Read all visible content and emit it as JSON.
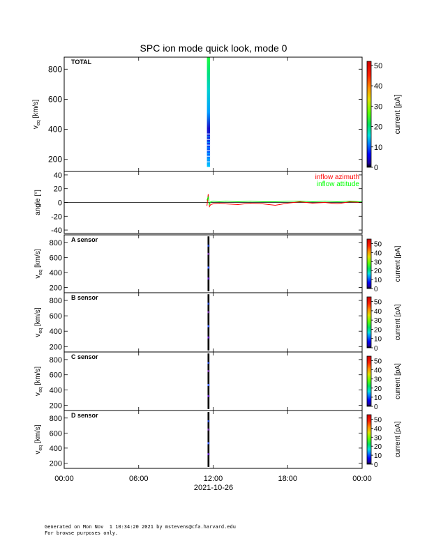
{
  "title": "SPC ion mode quick look, mode 0",
  "footer": {
    "line1": "Generated on Mon Nov  1 10:34:20 2021 by mstevens@cfa.harvard.edu",
    "line2": "For browse purposes only."
  },
  "chart_data": [
    {
      "type": "heatmap",
      "panel": "TOTAL",
      "label": "TOTAL",
      "ylabel": "v_eq [km/s]",
      "ylim": [
        120,
        880
      ],
      "yticks": [
        200,
        400,
        600,
        800
      ],
      "colorbar": {
        "label": "current [pA]",
        "range": [
          0,
          52
        ],
        "ticks": [
          0,
          10,
          20,
          30,
          40,
          50
        ]
      },
      "xlim": [
        0,
        24
      ],
      "active_interval_hours": [
        11.5,
        11.75
      ],
      "velocity_extent": [
        150,
        880
      ]
    },
    {
      "type": "line",
      "panel": "angle",
      "ylabel": "angle [°]",
      "ylim": [
        -45,
        45
      ],
      "yticks": [
        -40,
        -20,
        0,
        20,
        40
      ],
      "legend_position": "top-right",
      "series": [
        {
          "name": "inflow azimuth",
          "color": "#ff0000",
          "x": [
            11.5,
            11.6,
            11.7,
            11.8,
            12.0,
            12.5,
            13.0,
            14.0,
            15.0,
            16.0,
            17.0,
            18.0,
            19.0,
            20.0,
            21.0,
            22.0,
            23.0,
            24.0
          ],
          "values": [
            -5,
            12,
            -6,
            -3,
            -2,
            -1,
            -2,
            -3,
            -1,
            -2,
            -4,
            -1,
            1,
            -1,
            0,
            -2,
            1,
            0
          ]
        },
        {
          "name": "inflow attitude",
          "color": "#00ff00",
          "x": [
            11.5,
            11.6,
            11.7,
            11.8,
            12.0,
            12.5,
            13.0,
            14.0,
            15.0,
            16.0,
            17.0,
            18.0,
            19.0,
            20.0,
            21.0,
            22.0,
            23.0,
            24.0
          ],
          "values": [
            3,
            8,
            -3,
            1,
            2,
            1,
            2,
            1,
            2,
            1,
            1,
            2,
            2,
            1,
            2,
            1,
            2,
            1
          ]
        }
      ],
      "xlim": [
        0,
        24
      ]
    },
    {
      "type": "heatmap",
      "panel": "A",
      "label": "A sensor",
      "ylabel": "v_eq [km/s]",
      "ylim": [
        130,
        900
      ],
      "yticks": [
        200,
        400,
        600,
        800
      ],
      "colorbar": {
        "label": "current [pA]",
        "range": [
          0,
          55
        ],
        "ticks": [
          0,
          10,
          20,
          30,
          40,
          50
        ]
      },
      "xlim": [
        0,
        24
      ],
      "active_interval_hours": [
        11.55,
        11.7
      ]
    },
    {
      "type": "heatmap",
      "panel": "B",
      "label": "B sensor",
      "ylabel": "v_eq [km/s]",
      "ylim": [
        130,
        900
      ],
      "yticks": [
        200,
        400,
        600,
        800
      ],
      "colorbar": {
        "label": "current [pA]",
        "range": [
          0,
          55
        ],
        "ticks": [
          0,
          10,
          20,
          30,
          40,
          50
        ]
      },
      "xlim": [
        0,
        24
      ],
      "active_interval_hours": [
        11.55,
        11.7
      ]
    },
    {
      "type": "heatmap",
      "panel": "C",
      "label": "C sensor",
      "ylabel": "v_eq [km/s]",
      "ylim": [
        130,
        900
      ],
      "yticks": [
        200,
        400,
        600,
        800
      ],
      "colorbar": {
        "label": "current [pA]",
        "range": [
          0,
          55
        ],
        "ticks": [
          0,
          10,
          20,
          30,
          40,
          50
        ]
      },
      "xlim": [
        0,
        24
      ],
      "active_interval_hours": [
        11.55,
        11.7
      ]
    },
    {
      "type": "heatmap",
      "panel": "D",
      "label": "D sensor",
      "ylabel": "v_eq [km/s]",
      "ylim": [
        130,
        900
      ],
      "yticks": [
        200,
        400,
        600,
        800
      ],
      "colorbar": {
        "label": "current [pA]",
        "range": [
          0,
          55
        ],
        "ticks": [
          0,
          10,
          20,
          30,
          40,
          50
        ]
      },
      "xlim": [
        0,
        24
      ],
      "active_interval_hours": [
        11.55,
        11.7
      ]
    }
  ],
  "x_axis": {
    "ticks": [
      0,
      6,
      12,
      18,
      24
    ],
    "tick_labels": [
      "00:00",
      "06:00",
      "12:00",
      "18:00",
      "00:00"
    ],
    "date_label": "2021-10-26"
  }
}
